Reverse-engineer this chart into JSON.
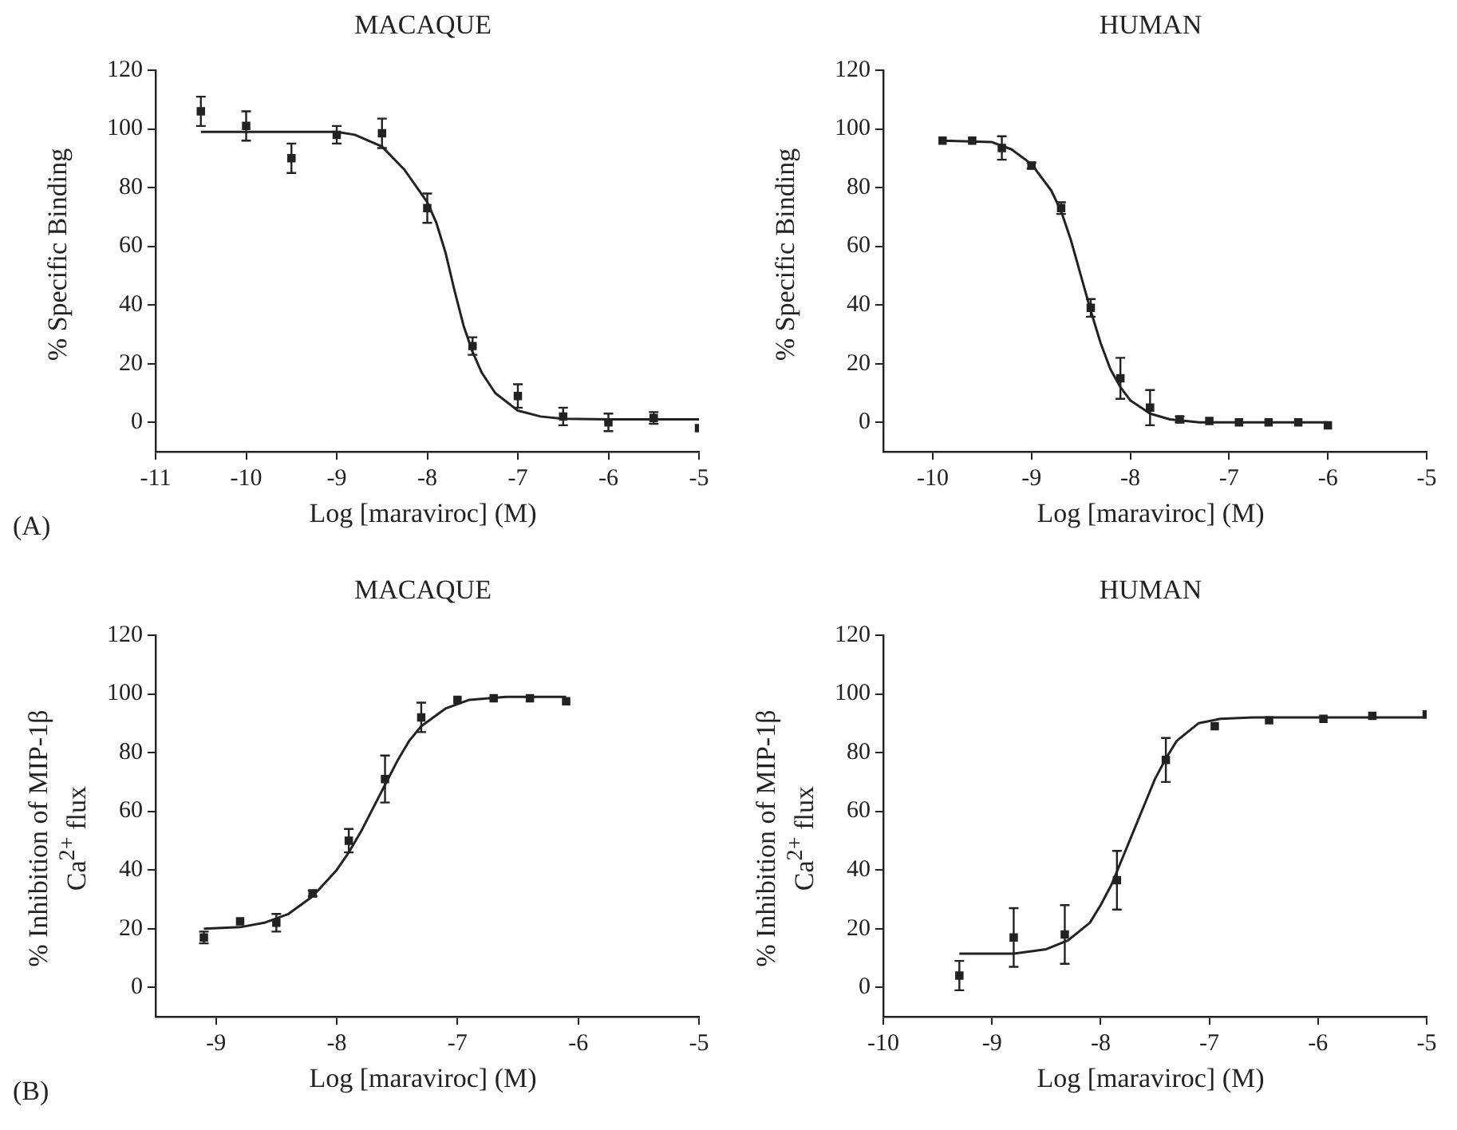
{
  "chart_data": [
    {
      "type": "scatter",
      "title": "MACAQUE",
      "xlabel": "Log [maraviroc] (M)",
      "ylabel": "% Specific Binding",
      "xlim": [
        -11,
        -5
      ],
      "xticks": [
        -11,
        -10,
        -9,
        -8,
        -7,
        -6,
        -5
      ],
      "ylim": [
        -10,
        120
      ],
      "yticks": [
        0,
        20,
        40,
        60,
        80,
        100,
        120
      ],
      "line_style": "solid",
      "annotations": [
        "(A)"
      ],
      "series": [
        {
          "type": "scatter",
          "marker": "square",
          "color": "#222222",
          "x": [
            -10.5,
            -10,
            -9.5,
            -9,
            -8.5,
            -8,
            -7.5,
            -7,
            -6.5,
            -6,
            -5.5,
            -5
          ],
          "values": [
            106,
            101,
            90,
            98,
            98.5,
            73,
            26,
            9,
            2,
            0,
            1.5,
            -2
          ],
          "errors": [
            5,
            5,
            5,
            3,
            5,
            5,
            3,
            4,
            3,
            3,
            2,
            null
          ]
        },
        {
          "type": "line",
          "marker": "none",
          "color": "#222222",
          "x": [
            -10.5,
            -9,
            -8.8,
            -8.5,
            -8.25,
            -8,
            -7.9,
            -7.8,
            -7.7,
            -7.6,
            -7.5,
            -7.4,
            -7.25,
            -7,
            -6.75,
            -6.5,
            -6,
            -5
          ],
          "values": [
            99,
            99,
            98,
            94,
            86,
            75,
            68,
            58,
            45,
            33,
            24,
            17,
            10,
            4,
            2,
            1.2,
            1,
            1
          ]
        }
      ]
    },
    {
      "type": "scatter",
      "title": "HUMAN",
      "xlabel": "Log [maraviroc] (M)",
      "ylabel": "% Specific Binding",
      "xlim": [
        -10.5,
        -5
      ],
      "xticks": [
        -10,
        -9,
        -8,
        -7,
        -6,
        -5
      ],
      "ylim": [
        -10,
        120
      ],
      "yticks": [
        0,
        20,
        40,
        60,
        80,
        100,
        120
      ],
      "line_style": "solid",
      "series": [
        {
          "type": "scatter",
          "marker": "square",
          "color": "#222222",
          "x": [
            -9.9,
            -9.6,
            -9.3,
            -9,
            -8.7,
            -8.4,
            -8.1,
            -7.8,
            -7.5,
            -7.2,
            -6.9,
            -6.6,
            -6.3,
            -6
          ],
          "values": [
            96,
            96,
            93.5,
            87.5,
            73,
            39,
            15,
            5,
            1,
            0.5,
            0,
            0,
            0,
            -1
          ],
          "errors": [
            null,
            null,
            4,
            1,
            2,
            3,
            7,
            6,
            1,
            null,
            null,
            null,
            null,
            null
          ]
        },
        {
          "type": "line",
          "marker": "none",
          "color": "#222222",
          "x": [
            -9.9,
            -9.4,
            -9.2,
            -9,
            -8.8,
            -8.7,
            -8.6,
            -8.5,
            -8.4,
            -8.3,
            -8.2,
            -8.1,
            -8,
            -7.8,
            -7.6,
            -7.3,
            -6
          ],
          "values": [
            96,
            95.5,
            93,
            88,
            79,
            72,
            62,
            50,
            38,
            27,
            18,
            12,
            7.5,
            3,
            1,
            0,
            0
          ]
        }
      ]
    },
    {
      "type": "scatter",
      "title": "MACAQUE",
      "xlabel": "Log [maraviroc] (M)",
      "ylabel": "% Inhibition of MIP-1β\nCa$^{2+}$ flux",
      "xlim": [
        -9.5,
        -5
      ],
      "xticks": [
        -9,
        -8,
        -7,
        -6,
        -5
      ],
      "ylim": [
        -10,
        120
      ],
      "yticks": [
        0,
        20,
        40,
        60,
        80,
        100,
        120
      ],
      "line_style": "solid",
      "annotations": [
        "(B)"
      ],
      "series": [
        {
          "type": "scatter",
          "marker": "square",
          "color": "#222222",
          "x": [
            -9.1,
            -8.8,
            -8.5,
            -8.2,
            -7.9,
            -7.6,
            -7.3,
            -7,
            -6.7,
            -6.4,
            -6.1
          ],
          "values": [
            17,
            22.5,
            22,
            32,
            50,
            71,
            92,
            98,
            98.5,
            98.5,
            97.5
          ],
          "errors": [
            2,
            null,
            3,
            1,
            4,
            8,
            5,
            null,
            null,
            null,
            null
          ]
        },
        {
          "type": "line",
          "marker": "none",
          "color": "#222222",
          "x": [
            -9.1,
            -8.8,
            -8.6,
            -8.4,
            -8.2,
            -8,
            -7.9,
            -7.8,
            -7.7,
            -7.6,
            -7.5,
            -7.4,
            -7.3,
            -7.1,
            -6.9,
            -6.6,
            -6.1
          ],
          "values": [
            20,
            20.5,
            22,
            25,
            31,
            40,
            46,
            53,
            61,
            69,
            77,
            84,
            89,
            95,
            98,
            99,
            99
          ]
        }
      ]
    },
    {
      "type": "scatter",
      "title": "HUMAN",
      "xlabel": "Log [maraviroc] (M)",
      "ylabel": "% Inhibition of MIP-1β\nCa$^{2+}$ flux",
      "xlim": [
        -10,
        -5
      ],
      "xticks": [
        -10,
        -9,
        -8,
        -7,
        -6,
        -5
      ],
      "ylim": [
        -10,
        120
      ],
      "yticks": [
        0,
        20,
        40,
        60,
        80,
        100,
        120
      ],
      "line_style": "solid",
      "series": [
        {
          "type": "scatter",
          "marker": "square",
          "color": "#222222",
          "x": [
            -9.3,
            -8.8,
            -8.33,
            -7.85,
            -7.4,
            -6.95,
            -6.45,
            -5.95,
            -5.5,
            -5
          ],
          "values": [
            4,
            17,
            18,
            36.5,
            77.5,
            89,
            91,
            91.5,
            92.5,
            93
          ],
          "errors": [
            5,
            10,
            10,
            10,
            7.5,
            null,
            null,
            null,
            null,
            null
          ]
        },
        {
          "type": "line",
          "marker": "none",
          "color": "#222222",
          "x": [
            -9.3,
            -8.8,
            -8.5,
            -8.3,
            -8.1,
            -8,
            -7.9,
            -7.8,
            -7.7,
            -7.6,
            -7.5,
            -7.4,
            -7.3,
            -7.1,
            -6.9,
            -6.6,
            -5
          ],
          "values": [
            11.5,
            11.5,
            13,
            16,
            22,
            28,
            35,
            44,
            53,
            62,
            71,
            78,
            84,
            90,
            91.5,
            92,
            92
          ]
        }
      ]
    }
  ]
}
